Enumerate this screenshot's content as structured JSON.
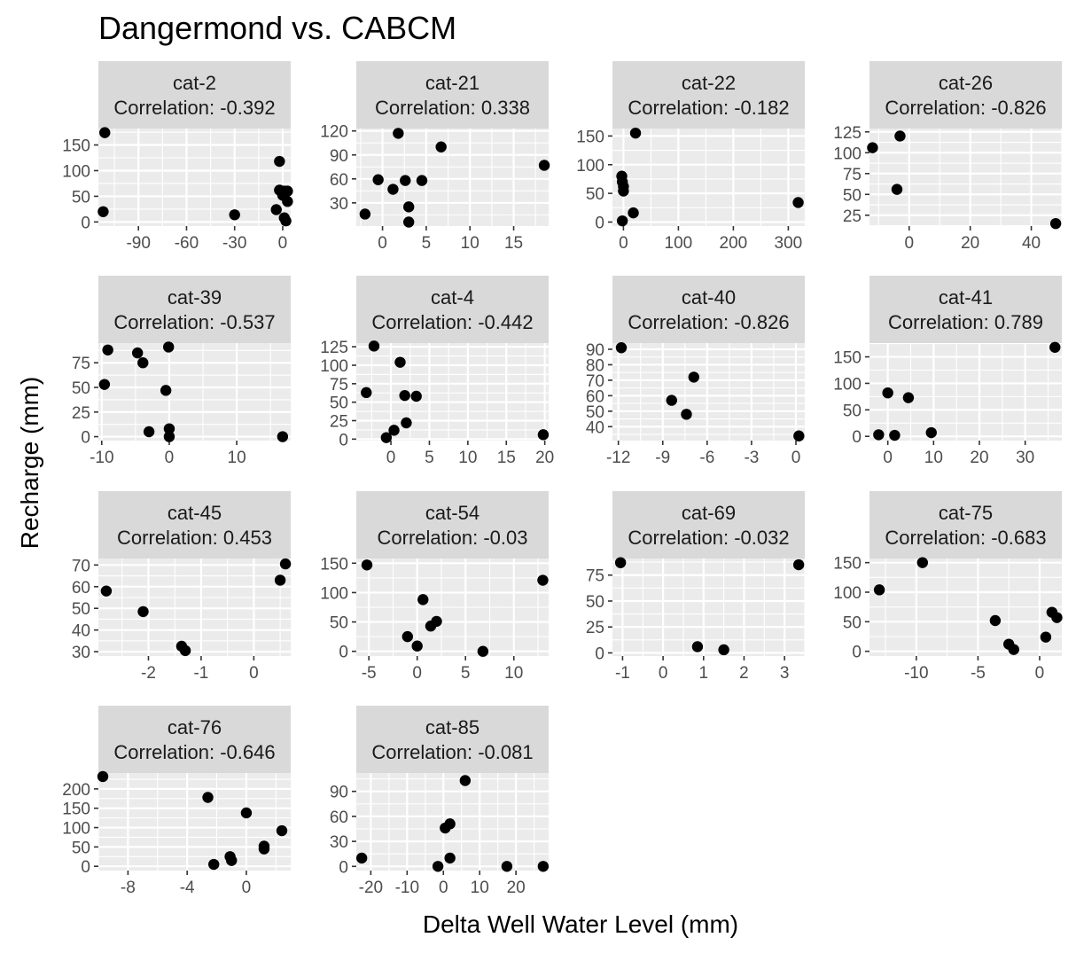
{
  "chart_data": {
    "type": "scatter",
    "title": "Dangermond vs. CABCM",
    "xlabel": "Delta Well Water Level (mm)",
    "ylabel": "Recharge (mm)",
    "facet_scales": "free",
    "grid": true,
    "panels": [
      {
        "name": "cat-2",
        "correlation_label": "Correlation: -0.392",
        "xlim": [
          -115,
          5
        ],
        "ylim": [
          -8,
          182
        ],
        "xticks": [
          -90,
          -60,
          -30,
          0
        ],
        "yticks": [
          0,
          50,
          100,
          150
        ],
        "points": [
          [
            -111,
            174
          ],
          [
            -112,
            20
          ],
          [
            -30,
            14
          ],
          [
            -4,
            24
          ],
          [
            -2,
            118
          ],
          [
            -2,
            62
          ],
          [
            0,
            52
          ],
          [
            1,
            60
          ],
          [
            3,
            60
          ],
          [
            3,
            40
          ],
          [
            1,
            8
          ],
          [
            2,
            2
          ]
        ]
      },
      {
        "name": "cat-21",
        "correlation_label": "Correlation: 0.338",
        "xlim": [
          -3,
          19
        ],
        "ylim": [
          1,
          123
        ],
        "xticks": [
          0,
          5,
          10,
          15
        ],
        "yticks": [
          30,
          60,
          90,
          120
        ],
        "points": [
          [
            -2,
            16
          ],
          [
            -0.5,
            59
          ],
          [
            1.2,
            47
          ],
          [
            1.8,
            117
          ],
          [
            2.6,
            58
          ],
          [
            3,
            25
          ],
          [
            3,
            6
          ],
          [
            4.5,
            58
          ],
          [
            6.7,
            100
          ],
          [
            18.5,
            77
          ]
        ]
      },
      {
        "name": "cat-22",
        "correlation_label": "Correlation: -0.182",
        "xlim": [
          -20,
          330
        ],
        "ylim": [
          -7,
          163
        ],
        "xticks": [
          0,
          100,
          200,
          300
        ],
        "yticks": [
          0,
          50,
          100,
          150
        ],
        "points": [
          [
            -3,
            80
          ],
          [
            -2,
            70
          ],
          [
            0,
            62
          ],
          [
            0,
            54
          ],
          [
            -2,
            2
          ],
          [
            18,
            16
          ],
          [
            22,
            155
          ],
          [
            318,
            34
          ]
        ]
      },
      {
        "name": "cat-26",
        "correlation_label": "Correlation: -0.826",
        "xlim": [
          -13,
          50
        ],
        "ylim": [
          12,
          129
        ],
        "xticks": [
          0,
          20,
          40
        ],
        "yticks": [
          25,
          50,
          75,
          100,
          125
        ],
        "points": [
          [
            -12,
            106
          ],
          [
            -3,
            120
          ],
          [
            -4,
            56
          ],
          [
            48,
            15
          ]
        ]
      },
      {
        "name": "cat-39",
        "correlation_label": "Correlation: -0.537",
        "xlim": [
          -10.5,
          18
        ],
        "ylim": [
          -4,
          95
        ],
        "xticks": [
          -10,
          0,
          10
        ],
        "yticks": [
          0,
          25,
          50,
          75
        ],
        "points": [
          [
            -9.6,
            53
          ],
          [
            -9.1,
            88
          ],
          [
            -4.7,
            85
          ],
          [
            -3.9,
            75
          ],
          [
            -3,
            5
          ],
          [
            -0.5,
            47
          ],
          [
            -0.1,
            91
          ],
          [
            0,
            8
          ],
          [
            0,
            0
          ],
          [
            16.8,
            0
          ]
        ]
      },
      {
        "name": "cat-4",
        "correlation_label": "Correlation: -0.442",
        "xlim": [
          -4.5,
          20.5
        ],
        "ylim": [
          -2,
          130
        ],
        "xticks": [
          0,
          5,
          10,
          15,
          20
        ],
        "yticks": [
          0,
          25,
          50,
          75,
          100,
          125
        ],
        "points": [
          [
            -3.2,
            63
          ],
          [
            -2.2,
            126
          ],
          [
            -0.6,
            2
          ],
          [
            0.4,
            12
          ],
          [
            1.2,
            104
          ],
          [
            1.8,
            59
          ],
          [
            2,
            22
          ],
          [
            3.3,
            58
          ],
          [
            19.8,
            6
          ]
        ]
      },
      {
        "name": "cat-40",
        "correlation_label": "Correlation: -0.826",
        "xlim": [
          -12.4,
          0.6
        ],
        "ylim": [
          31,
          94
        ],
        "xticks": [
          -12,
          -9,
          -6,
          -3,
          0
        ],
        "yticks": [
          40,
          50,
          60,
          70,
          80,
          90
        ],
        "points": [
          [
            -11.8,
            91
          ],
          [
            -8.4,
            57
          ],
          [
            -7.4,
            48
          ],
          [
            -6.9,
            72
          ],
          [
            0.2,
            34
          ]
        ]
      },
      {
        "name": "cat-41",
        "correlation_label": "Correlation: 0.789",
        "xlim": [
          -4,
          38
        ],
        "ylim": [
          -8,
          176
        ],
        "xticks": [
          0,
          10,
          20,
          30
        ],
        "yticks": [
          0,
          50,
          100,
          150
        ],
        "points": [
          [
            -2,
            3
          ],
          [
            0,
            82
          ],
          [
            1.5,
            2
          ],
          [
            4.5,
            73
          ],
          [
            9.5,
            7
          ],
          [
            36.5,
            168
          ]
        ]
      },
      {
        "name": "cat-45",
        "correlation_label": "Correlation: 0.453",
        "xlim": [
          -2.95,
          0.7
        ],
        "ylim": [
          28,
          73
        ],
        "xticks": [
          -2,
          -1,
          0
        ],
        "yticks": [
          30,
          40,
          50,
          60,
          70
        ],
        "points": [
          [
            -2.8,
            58
          ],
          [
            -2.1,
            48.5
          ],
          [
            -1.37,
            32.5
          ],
          [
            -1.3,
            30.5
          ],
          [
            0.5,
            63
          ],
          [
            0.6,
            70.5
          ]
        ]
      },
      {
        "name": "cat-54",
        "correlation_label": "Correlation: -0.03",
        "xlim": [
          -6.3,
          13.6
        ],
        "ylim": [
          -8,
          158
        ],
        "xticks": [
          -5,
          0,
          5,
          10
        ],
        "yticks": [
          0,
          50,
          100,
          150
        ],
        "points": [
          [
            -5.2,
            147
          ],
          [
            -1,
            25
          ],
          [
            0,
            9
          ],
          [
            0.6,
            88
          ],
          [
            1.4,
            43
          ],
          [
            2,
            51
          ],
          [
            6.8,
            0
          ],
          [
            13,
            121
          ]
        ]
      },
      {
        "name": "cat-69",
        "correlation_label": "Correlation: -0.032",
        "xlim": [
          -1.25,
          3.5
        ],
        "ylim": [
          -3,
          91
        ],
        "xticks": [
          -1,
          0,
          1,
          2,
          3
        ],
        "yticks": [
          0,
          25,
          50,
          75
        ],
        "points": [
          [
            -1.05,
            87
          ],
          [
            0.85,
            6
          ],
          [
            1.5,
            3
          ],
          [
            3.35,
            85
          ]
        ]
      },
      {
        "name": "cat-75",
        "correlation_label": "Correlation: -0.683",
        "xlim": [
          -13.8,
          1.8
        ],
        "ylim": [
          -8,
          157
        ],
        "xticks": [
          -10,
          -5,
          0
        ],
        "yticks": [
          0,
          50,
          100,
          150
        ],
        "points": [
          [
            -13,
            104
          ],
          [
            -9.5,
            150
          ],
          [
            -3.6,
            52
          ],
          [
            -2.5,
            12
          ],
          [
            -2.1,
            3
          ],
          [
            0.5,
            24
          ],
          [
            1,
            66
          ],
          [
            1.4,
            57
          ]
        ]
      },
      {
        "name": "cat-76",
        "correlation_label": "Correlation: -0.646",
        "xlim": [
          -10,
          3
        ],
        "ylim": [
          -11,
          241
        ],
        "xticks": [
          -8,
          -4,
          0
        ],
        "yticks": [
          0,
          50,
          100,
          150,
          200
        ],
        "points": [
          [
            -9.7,
            232
          ],
          [
            -2.6,
            178
          ],
          [
            -2.2,
            5
          ],
          [
            -1.1,
            25
          ],
          [
            -1,
            15
          ],
          [
            0,
            138
          ],
          [
            1.2,
            52
          ],
          [
            1.2,
            45
          ],
          [
            2.4,
            92
          ]
        ]
      },
      {
        "name": "cat-85",
        "correlation_label": "Correlation: -0.081",
        "xlim": [
          -24,
          29
        ],
        "ylim": [
          -5,
          112
        ],
        "xticks": [
          -20,
          -10,
          0,
          10,
          20
        ],
        "yticks": [
          0,
          30,
          60,
          90
        ],
        "points": [
          [
            -22.5,
            10
          ],
          [
            -1.5,
            0
          ],
          [
            0.5,
            46
          ],
          [
            1.8,
            51
          ],
          [
            1.8,
            10
          ],
          [
            6,
            103
          ],
          [
            17.5,
            0
          ],
          [
            27.5,
            0
          ]
        ]
      }
    ]
  }
}
